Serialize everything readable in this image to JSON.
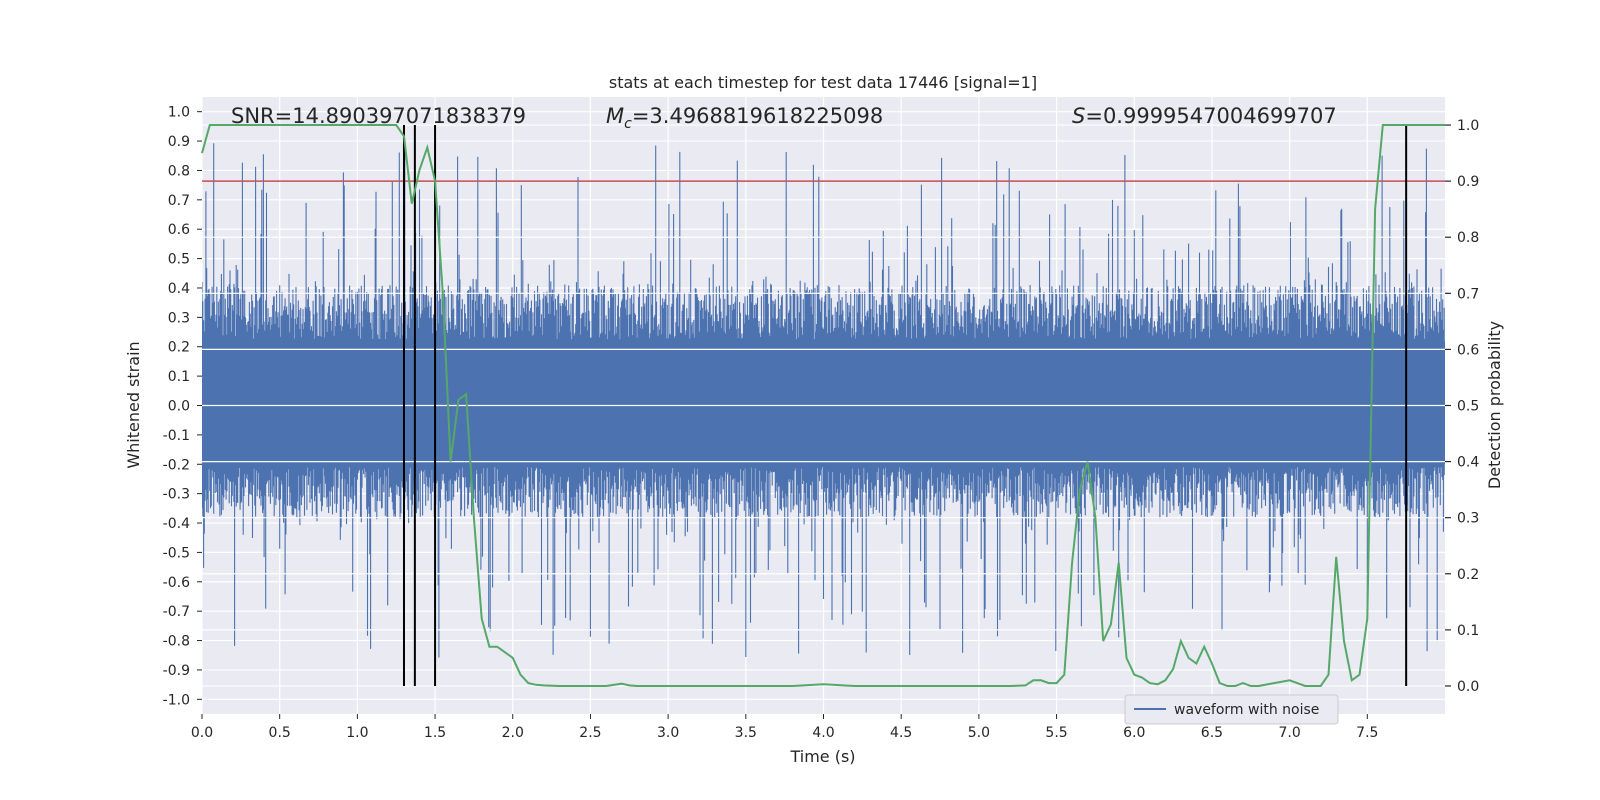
{
  "chart_data": {
    "type": "line",
    "title": "stats at each timestep for test data 17446 [signal=1]",
    "xlabel": "Time (s)",
    "ylabel": "Whitened strain",
    "y2label": "Detection probability",
    "xlim": [
      0,
      8
    ],
    "ylim": [
      -1.05,
      1.05
    ],
    "y2lim": [
      -0.05,
      1.05
    ],
    "x_ticks": [
      0,
      0.5,
      1,
      1.5,
      2,
      2.5,
      3,
      3.5,
      4,
      4.5,
      5,
      5.5,
      6,
      6.5,
      7,
      7.5
    ],
    "x_tick_labels": [
      "0.0",
      "0.5",
      "1.0",
      "1.5",
      "2.0",
      "2.5",
      "3.0",
      "3.5",
      "4.0",
      "4.5",
      "5.0",
      "5.5",
      "6.0",
      "6.5",
      "7.0",
      "7.5"
    ],
    "y_ticks": [
      1.0,
      0.9,
      0.8,
      0.7,
      0.6,
      0.5,
      0.4,
      0.3,
      0.2,
      0.1,
      0.0,
      -0.1,
      -0.2,
      -0.3,
      -0.4,
      -0.5,
      -0.6,
      -0.7,
      -0.8,
      -0.9,
      -1.0
    ],
    "y_tick_labels": [
      "1.0",
      "0.9",
      "0.8",
      "0.7",
      "0.6",
      "0.5",
      "0.4",
      "0.3",
      "0.2",
      "0.1",
      "0.0",
      "-0.1",
      "-0.2",
      "-0.3",
      "-0.4",
      "-0.5",
      "-0.6",
      "-0.7",
      "-0.8",
      "-0.9",
      "-1.0"
    ],
    "y2_ticks": [
      1.0,
      0.9,
      0.8,
      0.7,
      0.6,
      0.5,
      0.4,
      0.3,
      0.2,
      0.1,
      0.0
    ],
    "y2_tick_labels": [
      "1.0",
      "0.9",
      "0.8",
      "0.7",
      "0.6",
      "0.5",
      "0.4",
      "0.3",
      "0.2",
      "0.1",
      "0.0"
    ],
    "grid": true,
    "legend": {
      "position": "bottom-right",
      "entries": [
        {
          "label": "waveform with noise",
          "color": "#4c72b0"
        }
      ]
    },
    "annotations": {
      "snr": "SNR=14.890397071838379",
      "mc_symbol": "M",
      "mc_sub": "c",
      "mc_value": "=3.4968819618225098",
      "s_symbol": "S",
      "s_value": "=0.9999547004699707"
    },
    "threshold_line": {
      "axis": "y2",
      "value": 0.9,
      "color": "#c44e52"
    },
    "vertical_lines": [
      1.3,
      1.37,
      1.5,
      7.75
    ],
    "vertical_line_range": {
      "axis": "y2",
      "from": 0.0,
      "to": 1.0
    },
    "waveform": {
      "name": "waveform with noise",
      "color": "#4c72b0",
      "t_range": [
        0,
        8
      ],
      "typical_upper": 0.41,
      "typical_lower": -0.38,
      "max_peak": 1.0,
      "min_trough": -0.95
    },
    "series": [
      {
        "name": "detection probability",
        "axis": "y2",
        "color": "#55a868",
        "x": [
          0,
          0.05,
          0.1,
          0.2,
          0.4,
          0.6,
          0.8,
          1.0,
          1.1,
          1.2,
          1.25,
          1.3,
          1.35,
          1.4,
          1.45,
          1.5,
          1.55,
          1.6,
          1.65,
          1.7,
          1.75,
          1.8,
          1.85,
          1.9,
          1.95,
          2.0,
          2.05,
          2.1,
          2.15,
          2.2,
          2.3,
          2.5,
          2.6,
          2.7,
          2.75,
          2.8,
          3.0,
          3.2,
          3.4,
          3.6,
          3.8,
          4.0,
          4.2,
          4.4,
          4.6,
          4.8,
          5.0,
          5.2,
          5.3,
          5.35,
          5.4,
          5.45,
          5.5,
          5.55,
          5.6,
          5.65,
          5.7,
          5.75,
          5.8,
          5.85,
          5.9,
          5.95,
          6.0,
          6.05,
          6.1,
          6.15,
          6.2,
          6.25,
          6.3,
          6.35,
          6.4,
          6.45,
          6.5,
          6.55,
          6.6,
          6.65,
          6.7,
          6.75,
          6.8,
          6.9,
          7.0,
          7.1,
          7.2,
          7.25,
          7.3,
          7.35,
          7.4,
          7.45,
          7.5,
          7.55,
          7.6,
          7.65,
          7.7,
          7.75,
          7.8,
          7.85,
          7.9,
          7.95,
          8.0
        ],
        "values": [
          0.95,
          1.0,
          1.0,
          1.0,
          1.0,
          1.0,
          1.0,
          1.0,
          1.0,
          1.0,
          1.0,
          0.98,
          0.86,
          0.92,
          0.96,
          0.9,
          0.7,
          0.4,
          0.51,
          0.52,
          0.3,
          0.12,
          0.07,
          0.07,
          0.06,
          0.05,
          0.02,
          0.005,
          0.002,
          0.001,
          0.0,
          0.0,
          0.0,
          0.004,
          0.001,
          0.0,
          0.0,
          0.0,
          0.0,
          0.0,
          0.0,
          0.003,
          0.0,
          0.0,
          0.0,
          0.0,
          0.0,
          0.0,
          0.001,
          0.01,
          0.01,
          0.005,
          0.005,
          0.02,
          0.22,
          0.35,
          0.4,
          0.3,
          0.08,
          0.11,
          0.22,
          0.05,
          0.02,
          0.015,
          0.005,
          0.003,
          0.01,
          0.03,
          0.08,
          0.05,
          0.04,
          0.07,
          0.04,
          0.005,
          0.0,
          0.0,
          0.005,
          0.0,
          0.0,
          0.005,
          0.01,
          0.0,
          0.0,
          0.02,
          0.23,
          0.08,
          0.01,
          0.02,
          0.12,
          0.85,
          1.0,
          1.0,
          1.0,
          1.0,
          1.0,
          1.0,
          1.0,
          1.0,
          1.0
        ]
      }
    ]
  }
}
